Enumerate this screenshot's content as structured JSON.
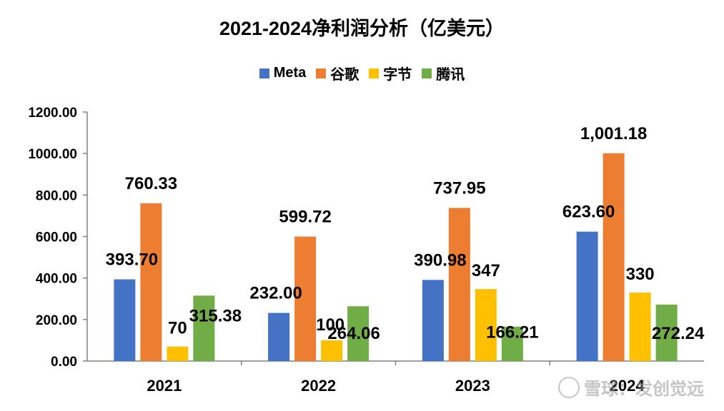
{
  "chart_data": {
    "type": "bar",
    "title": "2021-2024净利润分析（亿美元）",
    "categories": [
      "2021",
      "2022",
      "2023",
      "2024"
    ],
    "ylim": [
      0,
      1200
    ],
    "yticks": [
      "0.00",
      "200.00",
      "400.00",
      "600.00",
      "800.00",
      "1000.00",
      "1200.00"
    ],
    "ytick_values": [
      0,
      200,
      400,
      600,
      800,
      1000,
      1200
    ],
    "xlabel": "",
    "ylabel": "",
    "legend_position": "top-center",
    "series": [
      {
        "name": "Meta",
        "color": "#4472C4",
        "values": [
          393.7,
          232.0,
          390.98,
          623.6
        ],
        "labels": [
          "393.70",
          "232.00",
          "390.98",
          "623.60"
        ]
      },
      {
        "name": "谷歌",
        "color": "#ED7D31",
        "values": [
          760.33,
          599.72,
          737.95,
          1001.18
        ],
        "labels": [
          "760.33",
          "599.72",
          "737.95",
          "1,001.18"
        ]
      },
      {
        "name": "字节",
        "color": "#FFC000",
        "values": [
          70,
          100,
          347,
          330
        ],
        "labels": [
          "70",
          "100",
          "347",
          "330"
        ]
      },
      {
        "name": "腾讯",
        "color": "#70AD47",
        "values": [
          315.38,
          264.06,
          166.21,
          272.24
        ],
        "labels": [
          "315.38",
          "264.06",
          "166.21",
          "272.24"
        ]
      }
    ]
  },
  "watermark": "雪球：发创觉远"
}
